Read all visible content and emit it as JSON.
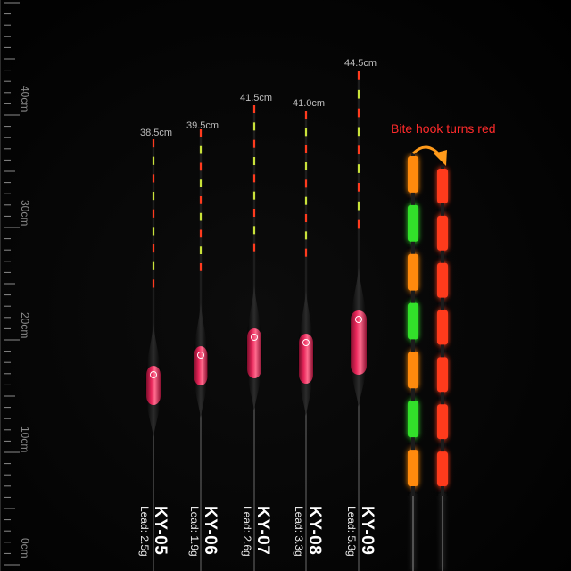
{
  "ruler": {
    "labels": [
      "40cm",
      "30cm",
      "20cm",
      "10cm",
      "0cm"
    ],
    "tick_color": "#8a8a8a"
  },
  "floats": [
    {
      "length": "38.5cm",
      "code": "KY-05",
      "lead": "Lead: 2.5g"
    },
    {
      "length": "39.5cm",
      "code": "KY-06",
      "lead": "Lead: 1.9g"
    },
    {
      "length": "41.5cm",
      "code": "KY-07",
      "lead": "Lead: 2.6g"
    },
    {
      "length": "41.0cm",
      "code": "KY-08",
      "lead": "Lead: 3.3g"
    },
    {
      "length": "44.5cm",
      "code": "KY-09",
      "lead": "Lead: 5.3g"
    }
  ],
  "bite_label": "Bite hook turns red",
  "colors": {
    "body": "#e8265a",
    "tip_red": "#ff3b1e",
    "tip_green": "#30e02a",
    "tip_orange": "#ff8a10",
    "label": "#ff2b2b"
  }
}
